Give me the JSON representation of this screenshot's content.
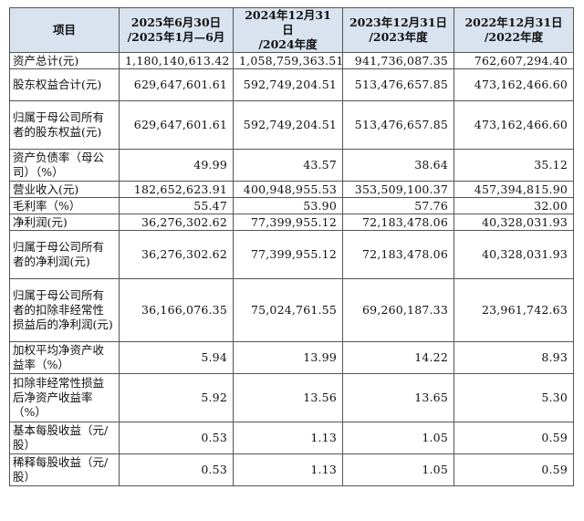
{
  "header": {
    "item": "项目",
    "periods": [
      [
        "2025年6月30日",
        "/2025年1月—6月"
      ],
      [
        "2024年12月31日",
        "/2024年度"
      ],
      [
        "2023年12月31日",
        "/2023年度"
      ],
      [
        "2022年12月31日",
        "/2022年度"
      ]
    ]
  },
  "rows": [
    {
      "label": "资产总计(元)",
      "values": [
        "1,180,140,613.42",
        "1,058,759,363.51",
        "941,736,087.35",
        "762,607,294.40"
      ]
    },
    {
      "label": "股东权益合计(元)",
      "values": [
        "629,647,601.61",
        "592,749,204.51",
        "513,476,657.85",
        "473,162,466.60"
      ]
    },
    {
      "label": "归属于母公司所有者的股东权益(元)",
      "values": [
        "629,647,601.61",
        "592,749,204.51",
        "513,476,657.85",
        "473,162,466.60"
      ]
    },
    {
      "label": "资产负债率（母公司）（%）",
      "values": [
        "49.99",
        "43.57",
        "38.64",
        "35.12"
      ]
    },
    {
      "label": "营业收入(元)",
      "values": [
        "182,652,623.91",
        "400,948,955.53",
        "353,509,100.37",
        "457,394,815.90"
      ]
    },
    {
      "label": "毛利率（%）",
      "values": [
        "55.47",
        "53.90",
        "57.76",
        "32.00"
      ]
    },
    {
      "label": "净利润(元)",
      "values": [
        "36,276,302.62",
        "77,399,955.12",
        "72,183,478.06",
        "40,328,031.93"
      ]
    },
    {
      "label": "归属于母公司所有者的净利润(元)",
      "values": [
        "36,276,302.62",
        "77,399,955.12",
        "72,183,478.06",
        "40,328,031.93"
      ]
    },
    {
      "label": "归属于母公司所有者的扣除非经常性损益后的净利润(元)",
      "values": [
        "36,166,076.35",
        "75,024,761.55",
        "69,260,187.33",
        "23,961,742.63"
      ]
    },
    {
      "label": "加权平均净资产收益率（%）",
      "values": [
        "5.94",
        "13.99",
        "14.22",
        "8.93"
      ]
    },
    {
      "label": "扣除非经常性损益后净资产收益率（%）",
      "values": [
        "5.92",
        "13.56",
        "13.65",
        "5.30"
      ]
    },
    {
      "label": "基本每股收益（元/股）",
      "values": [
        "0.53",
        "1.13",
        "1.05",
        "0.59"
      ]
    },
    {
      "label": "稀释每股收益（元/股）",
      "values": [
        "0.53",
        "1.13",
        "1.05",
        "0.59"
      ]
    }
  ]
}
